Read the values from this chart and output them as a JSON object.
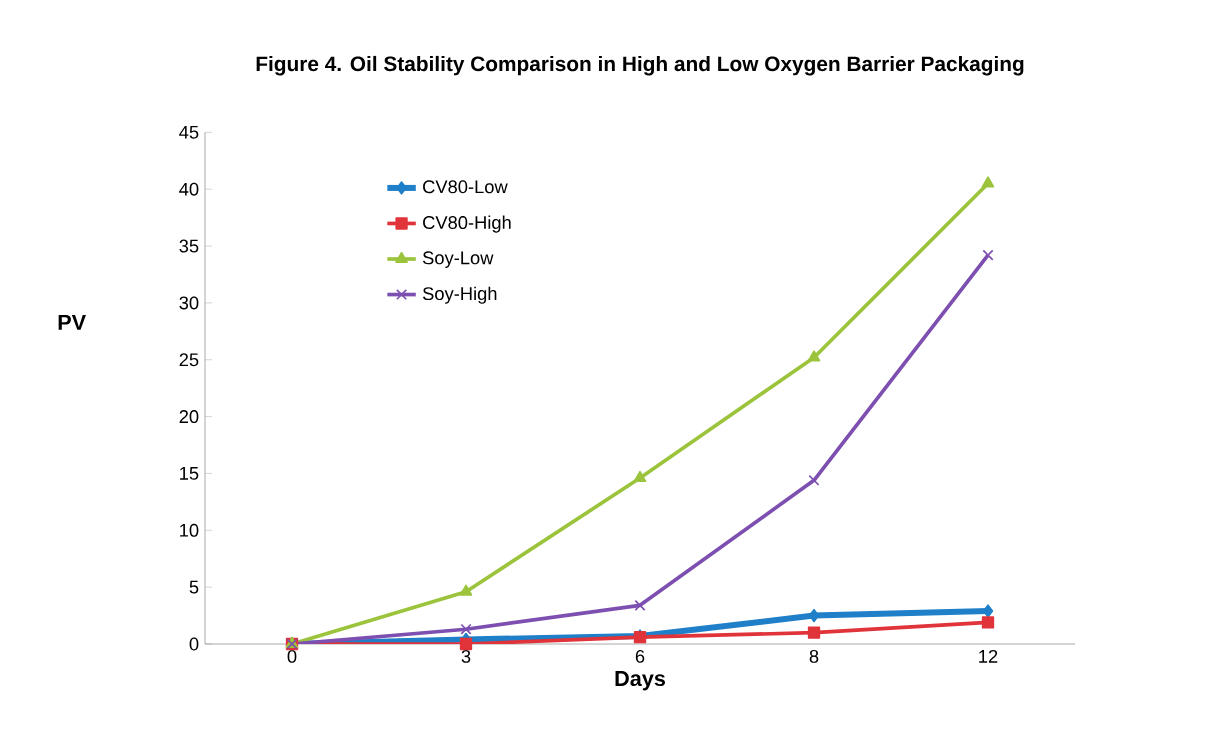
{
  "chart_data": {
    "type": "line",
    "title": "Figure 4. Oil Stability Comparison in High and Low Oxygen Barrier Packaging",
    "xlabel": "Days",
    "ylabel": "PV",
    "categories": [
      "0",
      "3",
      "6",
      "8",
      "12"
    ],
    "series": [
      {
        "name": "CV80-Low",
        "color": "#1f7fc8",
        "marker": "diamond",
        "values": [
          0,
          0.4,
          0.7,
          2.5,
          2.9
        ]
      },
      {
        "name": "CV80-High",
        "color": "#e0333a",
        "marker": "square",
        "values": [
          0,
          0,
          0.6,
          1.0,
          1.9
        ]
      },
      {
        "name": "Soy-Low",
        "color": "#9bc43c",
        "marker": "triangle",
        "values": [
          0,
          4.6,
          14.6,
          25.2,
          40.5
        ]
      },
      {
        "name": "Soy-High",
        "color": "#7d4fb0",
        "marker": "cross",
        "values": [
          0,
          1.3,
          3.4,
          14.4,
          34.2
        ]
      }
    ],
    "ylim": [
      0,
      45
    ],
    "yticks": [
      0,
      5,
      10,
      15,
      20,
      25,
      30,
      35,
      40,
      45
    ],
    "grid": false,
    "legend": "top left"
  }
}
